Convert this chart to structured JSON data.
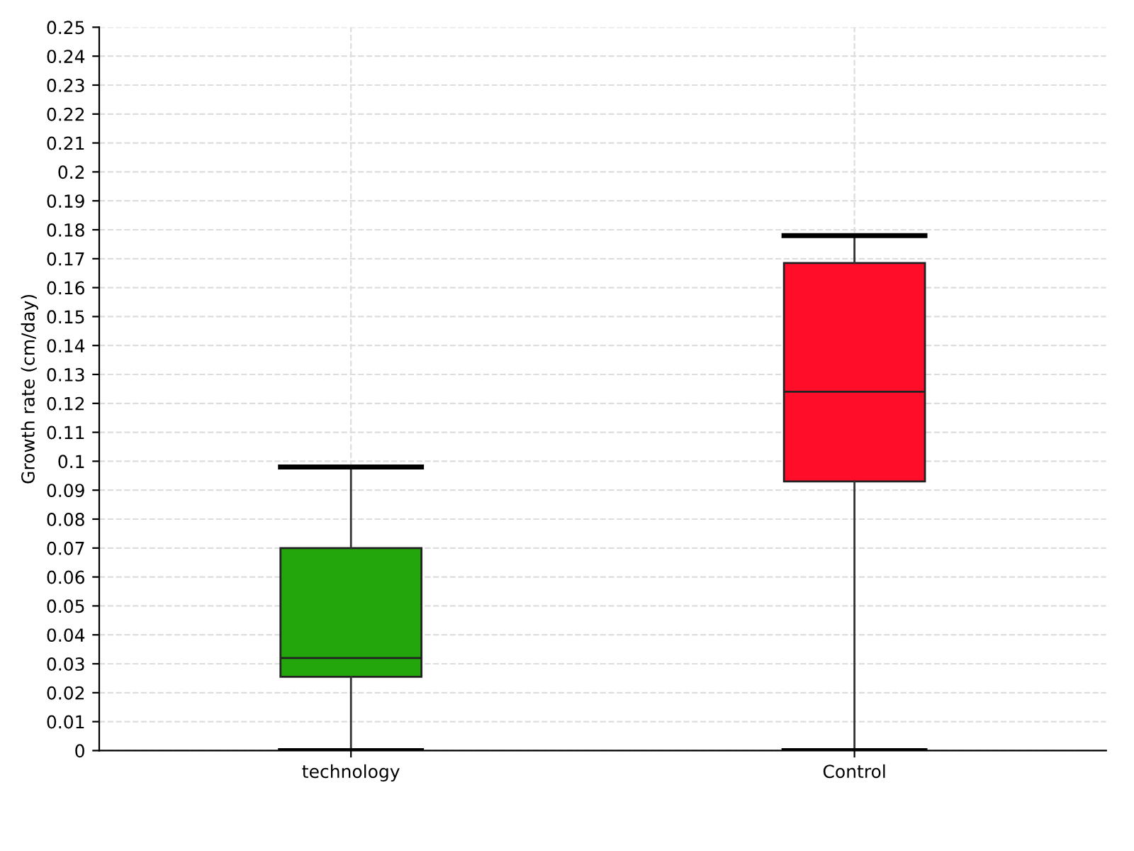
{
  "chart_data": {
    "type": "box",
    "ylabel": "Growth rate (cm/day)",
    "categories": [
      "technology",
      "Control"
    ],
    "series": [
      {
        "color": "#22a60c",
        "boxes": [
          {
            "low": 0,
            "q1": 0.0255,
            "median": 0.032,
            "q3": 0.07,
            "high": 0.098
          },
          null
        ]
      },
      {
        "color": "#ff0d29",
        "boxes": [
          null,
          {
            "low": 0,
            "q1": 0.093,
            "median": 0.124,
            "q3": 0.1685,
            "high": 0.178
          }
        ]
      }
    ],
    "ylim": [
      0,
      0.25
    ],
    "yticks": [
      0,
      0.01,
      0.02,
      0.03,
      0.04,
      0.05,
      0.06,
      0.07,
      0.08,
      0.09,
      0.1,
      0.11,
      0.12,
      0.13,
      0.14,
      0.15,
      0.16,
      0.17,
      0.18,
      0.19,
      0.2,
      0.21,
      0.22,
      0.23,
      0.24,
      0.25
    ],
    "grid": true
  }
}
